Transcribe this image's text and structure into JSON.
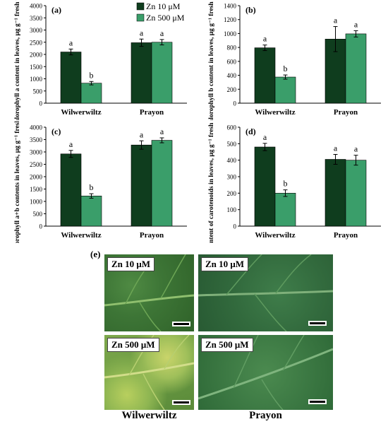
{
  "legend": [
    "Zn 10 μM",
    "Zn 500 μM"
  ],
  "colors": {
    "zn10": "#0f3d1e",
    "zn500": "#3a9e6a"
  },
  "chart_data": [
    {
      "type": "bar",
      "panel_label": "(a)",
      "ylabel": "Chlorophyll a content in leaves, μg g⁻¹ fresh weight",
      "categories": [
        "Wilwerwiltz",
        "Prayon"
      ],
      "series": [
        {
          "name": "Zn 10 μM",
          "values": [
            2100,
            2480
          ],
          "errors": [
            120,
            150
          ],
          "letters": [
            "a",
            "a"
          ]
        },
        {
          "name": "Zn 500 μM",
          "values": [
            820,
            2500
          ],
          "errors": [
            70,
            110
          ],
          "letters": [
            "b",
            "a"
          ]
        }
      ],
      "ylim": [
        0,
        4000
      ],
      "yticks": [
        "0",
        "500",
        "1000",
        "1500",
        "2000",
        "2500",
        "3000",
        "3500",
        "4000"
      ]
    },
    {
      "type": "bar",
      "panel_label": "(b)",
      "ylabel": "Chlorophyll b content in leaves, μg g⁻¹ fresh weight",
      "categories": [
        "Wilwerwiltz",
        "Prayon"
      ],
      "series": [
        {
          "name": "Zn 10 μM",
          "values": [
            795,
            920
          ],
          "errors": [
            40,
            180
          ],
          "letters": [
            "a",
            "a"
          ]
        },
        {
          "name": "Zn 500 μM",
          "values": [
            375,
            995
          ],
          "errors": [
            30,
            45
          ],
          "letters": [
            "b",
            "a"
          ]
        }
      ],
      "ylim": [
        0,
        1400
      ],
      "yticks": [
        "0",
        "200",
        "400",
        "600",
        "800",
        "1000",
        "1200",
        "1400"
      ]
    },
    {
      "type": "bar",
      "panel_label": "(c)",
      "ylabel": "Chlorophyll a+b contents in leaves, μg g⁻¹ fresh weight",
      "categories": [
        "Wilwerwiltz",
        "Prayon"
      ],
      "series": [
        {
          "name": "Zn 10 μM",
          "values": [
            2920,
            3280
          ],
          "errors": [
            140,
            170
          ],
          "letters": [
            "a",
            "a"
          ]
        },
        {
          "name": "Zn 500 μM",
          "values": [
            1220,
            3470
          ],
          "errors": [
            90,
            100
          ],
          "letters": [
            "b",
            "a"
          ]
        }
      ],
      "ylim": [
        0,
        4000
      ],
      "yticks": [
        "0",
        "500",
        "1000",
        "1500",
        "2000",
        "2500",
        "3000",
        "3500",
        "4000"
      ]
    },
    {
      "type": "bar",
      "panel_label": "(d)",
      "ylabel": "Content of carotenoids in leaves, μg g⁻¹ fresh weight",
      "categories": [
        "Wilwerwiltz",
        "Prayon"
      ],
      "series": [
        {
          "name": "Zn 10 μM",
          "values": [
            480,
            405
          ],
          "errors": [
            22,
            30
          ],
          "letters": [
            "a",
            "a"
          ]
        },
        {
          "name": "Zn 500 μM",
          "values": [
            200,
            400
          ],
          "errors": [
            20,
            30
          ],
          "letters": [
            "b",
            "a"
          ]
        }
      ],
      "ylim": [
        0,
        600
      ],
      "yticks": [
        "0",
        "100",
        "200",
        "300",
        "400",
        "500",
        "600"
      ]
    }
  ],
  "photos": {
    "panel_label": "(e)",
    "labels": [
      "Zn 10 μM",
      "Zn 10 μM",
      "Zn 500 μM",
      "Zn 500 μM"
    ],
    "columns": [
      "Wilwerwiltz",
      "Prayon"
    ]
  }
}
